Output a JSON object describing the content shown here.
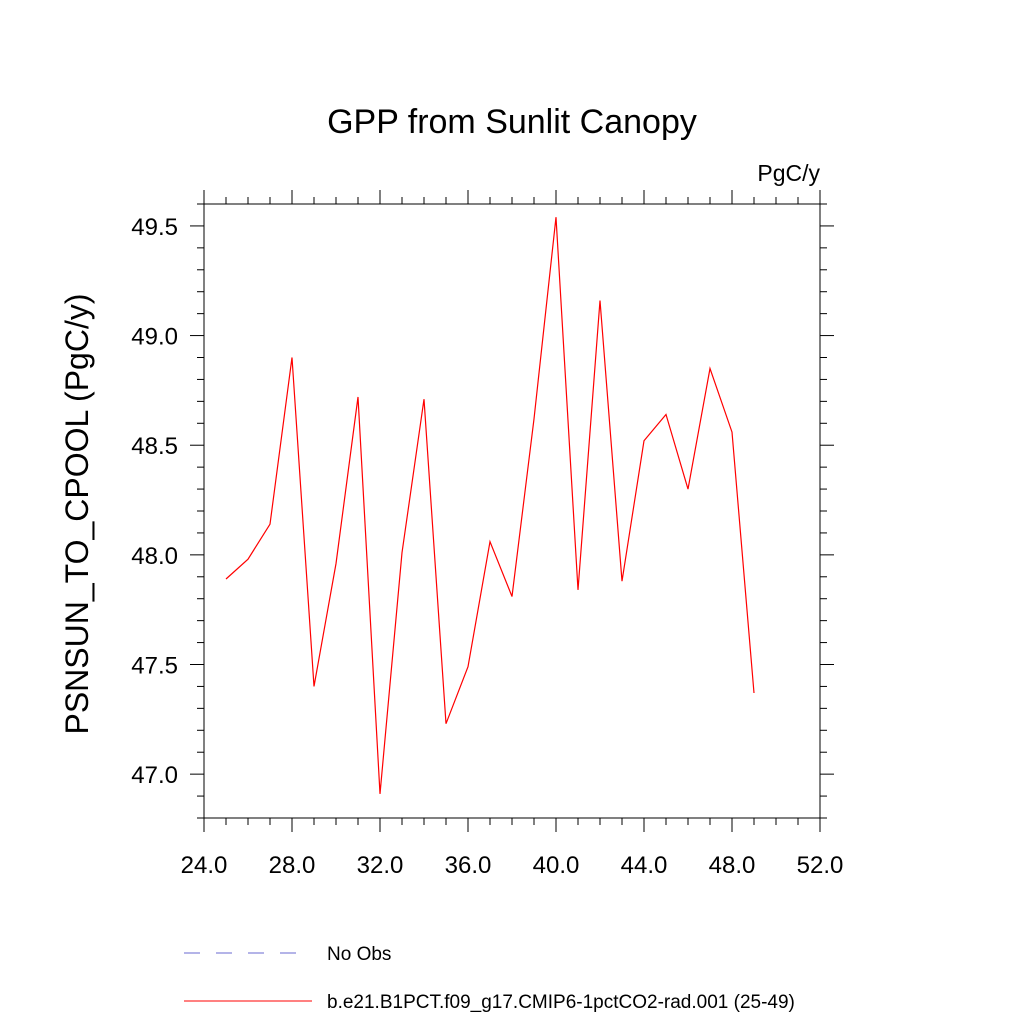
{
  "chart_data": {
    "type": "line",
    "title": "GPP from Sunlit Canopy",
    "units_label": "PgC/y",
    "xlabel": "",
    "ylabel": "PSNSUN_TO_CPOOL  (PgC/y)",
    "xlim": [
      24.0,
      52.0
    ],
    "ylim": [
      46.8,
      49.6
    ],
    "x_ticks": [
      24.0,
      28.0,
      32.0,
      36.0,
      40.0,
      44.0,
      48.0,
      52.0
    ],
    "x_tick_labels": [
      "24.0",
      "28.0",
      "32.0",
      "36.0",
      "40.0",
      "44.0",
      "48.0",
      "52.0"
    ],
    "y_ticks": [
      47.0,
      47.5,
      48.0,
      48.5,
      49.0,
      49.5
    ],
    "y_tick_labels": [
      "47.0",
      "47.5",
      "48.0",
      "48.5",
      "49.0",
      "49.5"
    ],
    "grid": false,
    "legend_position": "bottom",
    "series": [
      {
        "name": "b.e21.B1PCT.f09_g17.CMIP6-1pctCO2-rad.001 (25-49)",
        "color": "#ff0000",
        "style": "solid",
        "x": [
          25,
          26,
          27,
          28,
          29,
          30,
          31,
          32,
          33,
          34,
          35,
          36,
          37,
          38,
          39,
          40,
          41,
          42,
          43,
          44,
          45,
          46,
          47,
          48,
          49
        ],
        "y": [
          47.89,
          47.98,
          48.14,
          48.9,
          47.4,
          47.96,
          48.72,
          46.91,
          48.01,
          48.71,
          47.23,
          47.49,
          48.06,
          47.81,
          48.62,
          49.54,
          47.84,
          49.16,
          47.88,
          48.52,
          48.64,
          48.3,
          48.85,
          48.56,
          47.37
        ]
      }
    ],
    "legend": [
      {
        "label": "No Obs",
        "color": "#6a6ad0",
        "style": "dashed"
      },
      {
        "label": "b.e21.B1PCT.f09_g17.CMIP6-1pctCO2-rad.001 (25-49)",
        "color": "#ff0000",
        "style": "solid"
      }
    ]
  }
}
